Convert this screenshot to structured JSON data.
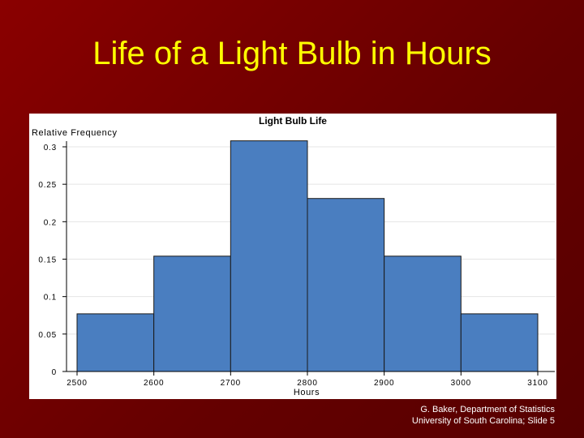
{
  "slide": {
    "title": "Life of a Light Bulb in Hours",
    "footer_line1": "G. Baker, Department of Statistics",
    "footer_line2": "University of South Carolina; Slide 5"
  },
  "chart_data": {
    "type": "bar",
    "title": "Light Bulb Life",
    "xlabel": "Hours",
    "ylabel": "Relative Frequency",
    "bins": [
      {
        "start": 2500,
        "end": 2600,
        "value": 0.077
      },
      {
        "start": 2600,
        "end": 2700,
        "value": 0.154
      },
      {
        "start": 2700,
        "end": 2800,
        "value": 0.308
      },
      {
        "start": 2800,
        "end": 2900,
        "value": 0.231
      },
      {
        "start": 2900,
        "end": 3000,
        "value": 0.154
      },
      {
        "start": 3000,
        "end": 3100,
        "value": 0.077
      }
    ],
    "x_ticks": [
      "2500",
      "2600",
      "2700",
      "2800",
      "2900",
      "3000",
      "3100"
    ],
    "y_ticks": [
      "0",
      "0.05",
      "0.1",
      "0.15",
      "0.2",
      "0.25",
      "0.3"
    ],
    "xlim": [
      2500,
      3100
    ],
    "ylim": [
      0,
      0.3
    ],
    "grid": true,
    "bar_color": "#4a7ec0"
  }
}
